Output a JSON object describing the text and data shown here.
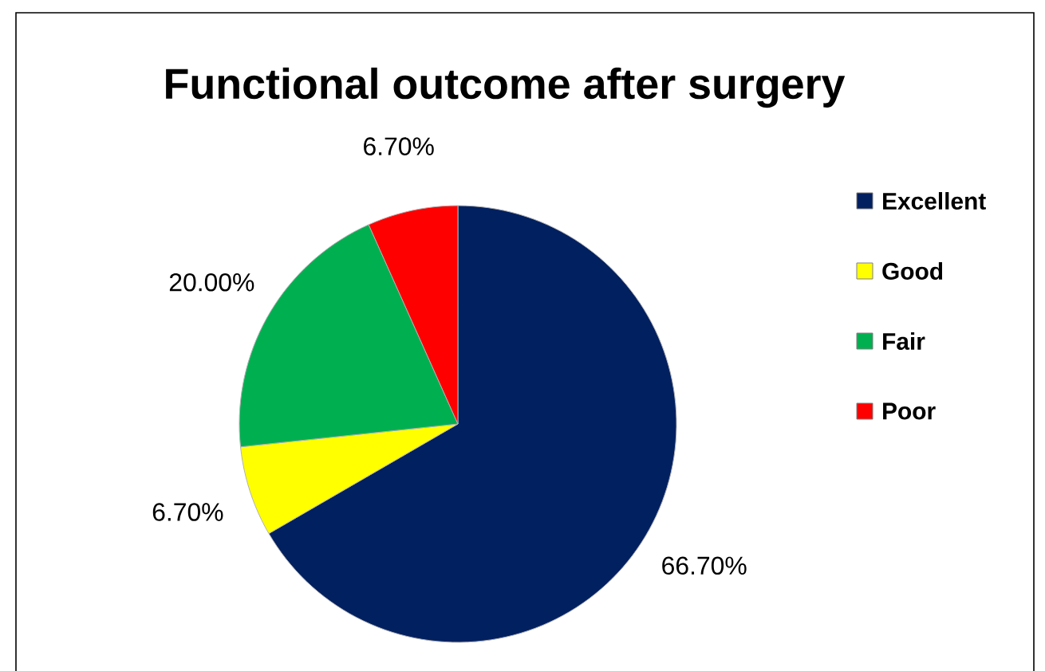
{
  "chart_data": {
    "type": "pie",
    "title": "Functional outcome after surgery",
    "categories": [
      "Excellent",
      "Good",
      "Fair",
      "Poor"
    ],
    "values": [
      66.7,
      6.7,
      20.0,
      6.7
    ],
    "value_labels": [
      "66.70%",
      "6.70%",
      "20.00%",
      "6.70%"
    ],
    "colors": [
      "#002060",
      "#ffff00",
      "#00b050",
      "#ff0000"
    ],
    "legend": "right"
  }
}
